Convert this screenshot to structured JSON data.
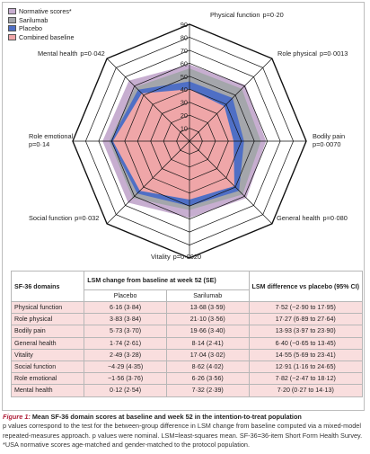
{
  "chart_data": {
    "type": "radar",
    "rmax": 90,
    "ticks": [
      0,
      10,
      20,
      30,
      40,
      50,
      60,
      70,
      80,
      90
    ],
    "axes": [
      {
        "name": "Physical function",
        "p": "p=0·20"
      },
      {
        "name": "Role physical",
        "p": "p=0·0013"
      },
      {
        "name": "Bodily pain",
        "p": "p=0·0070"
      },
      {
        "name": "General health",
        "p": "p=0·080"
      },
      {
        "name": "Vitality",
        "p": "p=0·0020"
      },
      {
        "name": "Social function",
        "p": "p=0·032"
      },
      {
        "name": "Role emotional",
        "p": "p=0·14"
      },
      {
        "name": "Mental health",
        "p": "p=0·042"
      }
    ],
    "series": [
      {
        "name": "Normative scores*",
        "color": "#c7aed0",
        "values": [
          59,
          61,
          59,
          62,
          59,
          67,
          67,
          66
        ]
      },
      {
        "name": "Sarilumab",
        "color": "#a4a6ab",
        "values": [
          56,
          57,
          55,
          58,
          53,
          62,
          62,
          59
        ]
      },
      {
        "name": "Placebo",
        "color": "#4f6fc5",
        "values": [
          46,
          47,
          42,
          54,
          50,
          57,
          61,
          56
        ]
      },
      {
        "name": "Combined baseline",
        "color": "#efa6a8",
        "values": [
          40,
          38,
          34,
          49,
          45,
          54,
          59,
          52
        ]
      }
    ]
  },
  "table": {
    "headers": {
      "domain": "SF-36 domains",
      "lsm_change": "LSM change from baseline at week 52 (SE)",
      "lsm_diff": "LSM difference vs placebo (95% CI)"
    },
    "subheaders": {
      "placebo": "Placebo",
      "sarilumab": "Sarilumab"
    },
    "rows": [
      {
        "domain": "Physical function",
        "placebo": "6·16 (3·84)",
        "sarilumab": "13·68 (3·59)",
        "diff": "7·52 (−2·90 to 17·95)"
      },
      {
        "domain": "Role physical",
        "placebo": "3·83 (3·84)",
        "sarilumab": "21·10 (3·56)",
        "diff": "17·27 (6·89 to 27·64)"
      },
      {
        "domain": "Bodily pain",
        "placebo": "5·73 (3·70)",
        "sarilumab": "19·66 (3·40)",
        "diff": "13·93 (3·97 to 23·90)"
      },
      {
        "domain": "General health",
        "placebo": "1·74 (2·61)",
        "sarilumab": "8·14 (2·41)",
        "diff": "6·40 (−0·65 to 13·45)"
      },
      {
        "domain": "Vitality",
        "placebo": "2·49 (3·28)",
        "sarilumab": "17·04 (3·02)",
        "diff": "14·55 (5·69 to 23·41)"
      },
      {
        "domain": "Social function",
        "placebo": "−4·29 (4·35)",
        "sarilumab": "8·62 (4·02)",
        "diff": "12·91 (1·16 to 24·65)"
      },
      {
        "domain": "Role emotional",
        "placebo": "−1·56 (3·76)",
        "sarilumab": "6·26 (3·56)",
        "diff": "7·82 (−2·47 to 18·12)"
      },
      {
        "domain": "Mental health",
        "placebo": "0·12 (2·54)",
        "sarilumab": "7·32 (2·39)",
        "diff": "7·20 (0·27 to 14·13)"
      }
    ]
  },
  "caption": {
    "figure_label": "Figure 1:",
    "title": "Mean SF-36 domain scores at baseline and week 52 in the intention-to-treat population",
    "body": "p values correspond to the test for the between-group difference in LSM change from baseline computed via a mixed-model repeated-measures approach. p values were nominal. LSM=least-squares mean. SF-36=36-item Short Form Health Survey. *USA normative scores age-matched and gender-matched to the protocol population."
  }
}
